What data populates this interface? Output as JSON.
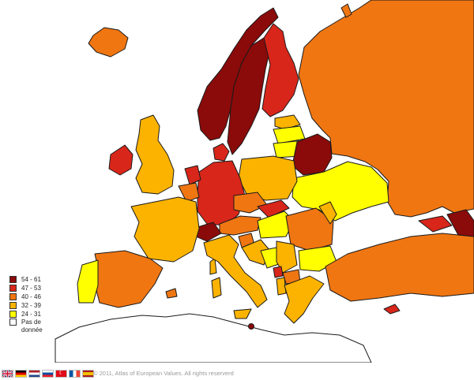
{
  "colors": {
    "c54_61": "#8b0a0a",
    "c47_53": "#d8261a",
    "c40_46": "#f07612",
    "c32_39": "#fbb300",
    "c24_31": "#ffff00",
    "nodata": "#ffffff"
  },
  "legend": {
    "items": [
      {
        "label": "54 - 61",
        "color": "#8b0a0a"
      },
      {
        "label": "47 - 53",
        "color": "#d8261a"
      },
      {
        "label": "40 - 46",
        "color": "#f07612"
      },
      {
        "label": "32 - 39",
        "color": "#fbb300"
      },
      {
        "label": "24 - 31",
        "color": "#ffff00"
      },
      {
        "label": "Pas de donnée",
        "color": "#ffffff"
      }
    ]
  },
  "footer": {
    "copyright": "© 2011, Atlas of European Values. All rights reserverd",
    "languages": [
      "english-flag-icon",
      "german-flag-icon",
      "dutch-flag-icon",
      "slovak-flag-icon",
      "turkish-flag-icon",
      "french-flag-icon",
      "spanish-flag-icon"
    ]
  }
}
